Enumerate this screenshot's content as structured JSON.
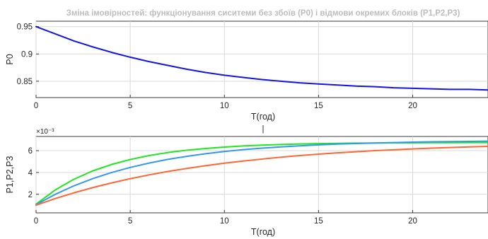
{
  "figure": {
    "title": "Зміна імовірностей: функціонування сиситеми без збоїв (P0) і відмови окремих блоків (P1,P2,P3)",
    "cursor_mark": "|",
    "colors": {
      "background": "#ffffff",
      "axes": "#262626",
      "grid": "#d9d9d9",
      "title": "#bdbdbd"
    }
  },
  "chart_data": [
    {
      "type": "line",
      "title": "Зміна імовірностей: функціонування сиситеми без збоїв (P0) і відмови окремих блоків (P1,P2,P3)",
      "xlabel": "T(год)",
      "ylabel": "P0",
      "xlim": [
        0,
        24
      ],
      "ylim": [
        0.82,
        0.96
      ],
      "xticks": [
        0,
        5,
        10,
        15,
        20
      ],
      "yticks": [
        0.85,
        0.9,
        0.95
      ],
      "ytick_labels": [
        "0.85",
        "0.9",
        "0.95"
      ],
      "y_exponent_label": "",
      "grid": true,
      "series": [
        {
          "color": "#1414e6",
          "x": [
            0,
            1,
            2,
            3,
            4,
            5,
            6,
            7,
            8,
            9,
            10,
            11,
            12,
            13,
            14,
            15,
            16,
            17,
            18,
            19,
            20,
            21,
            22,
            23,
            24
          ],
          "y": [
            0.95,
            0.937,
            0.924,
            0.913,
            0.903,
            0.894,
            0.886,
            0.879,
            0.872,
            0.866,
            0.861,
            0.857,
            0.853,
            0.85,
            0.847,
            0.845,
            0.843,
            0.841,
            0.84,
            0.838,
            0.837,
            0.836,
            0.835,
            0.835,
            0.834
          ]
        }
      ]
    },
    {
      "type": "line",
      "title": "",
      "xlabel": "T(год)",
      "ylabel": "P1,P2,P3",
      "xlim": [
        0,
        24
      ],
      "ylim": [
        0.0003,
        0.0073
      ],
      "xticks": [
        0,
        5,
        10,
        15,
        20
      ],
      "yticks": [
        0.002,
        0.004,
        0.006
      ],
      "ytick_labels": [
        "2",
        "4",
        "6"
      ],
      "y_exponent_label": "×10⁻³",
      "grid": true,
      "series": [
        {
          "color": "#1fe61f",
          "x": [
            0,
            1,
            2,
            3,
            4,
            5,
            6,
            7,
            8,
            9,
            10,
            11,
            12,
            13,
            14,
            15,
            16,
            17,
            18,
            19,
            20,
            21,
            22,
            23,
            24
          ],
          "y": [
            0.0011,
            0.00238,
            0.00337,
            0.00414,
            0.00473,
            0.00519,
            0.00555,
            0.00583,
            0.00604,
            0.0062,
            0.00633,
            0.00643,
            0.00651,
            0.00656,
            0.00661,
            0.00664,
            0.00667,
            0.00669,
            0.0067,
            0.00671,
            0.00672,
            0.00673,
            0.00673,
            0.00674,
            0.00674
          ]
        },
        {
          "color": "#3399f0",
          "x": [
            0,
            1,
            2,
            3,
            4,
            5,
            6,
            7,
            8,
            9,
            10,
            11,
            12,
            13,
            14,
            15,
            16,
            17,
            18,
            19,
            20,
            21,
            22,
            23,
            24
          ],
          "y": [
            0.00105,
            0.00198,
            0.00277,
            0.00343,
            0.00399,
            0.00446,
            0.00486,
            0.0052,
            0.00548,
            0.00572,
            0.00592,
            0.00609,
            0.00623,
            0.00634,
            0.00644,
            0.00653,
            0.0066,
            0.00665,
            0.0067,
            0.00674,
            0.00678,
            0.00681,
            0.00683,
            0.00685,
            0.00687
          ]
        },
        {
          "color": "#ff6633",
          "x": [
            0,
            1,
            2,
            3,
            4,
            5,
            6,
            7,
            8,
            9,
            10,
            11,
            12,
            13,
            14,
            15,
            16,
            17,
            18,
            19,
            20,
            21,
            22,
            23,
            24
          ],
          "y": [
            0.001,
            0.0016,
            0.00213,
            0.00261,
            0.00304,
            0.00343,
            0.00378,
            0.00409,
            0.00437,
            0.00462,
            0.00485,
            0.00505,
            0.00523,
            0.0054,
            0.00555,
            0.00568,
            0.0058,
            0.0059,
            0.006,
            0.00608,
            0.00616,
            0.00623,
            0.00629,
            0.00634,
            0.00639
          ]
        }
      ]
    }
  ]
}
